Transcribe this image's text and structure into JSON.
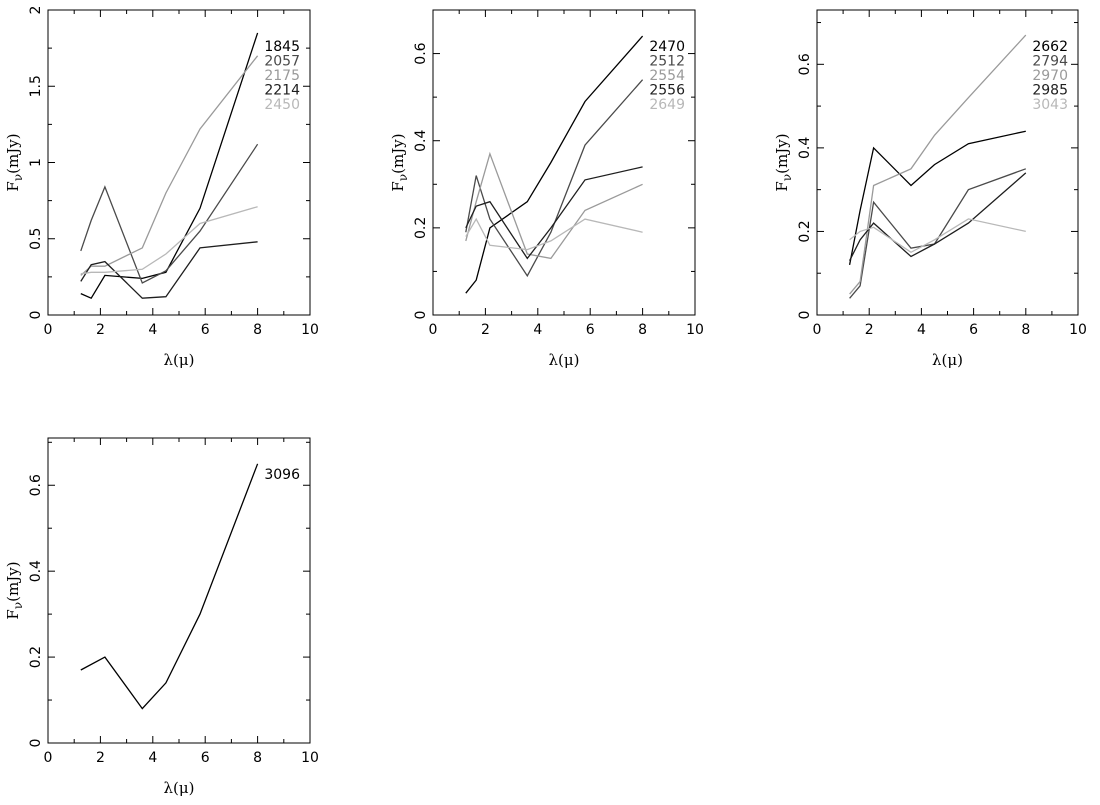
{
  "chart_data": [
    {
      "type": "line",
      "xlabel": "λ(μ)",
      "ylabel": "F_ν(mJy)",
      "xlim": [
        0,
        10
      ],
      "ylim": [
        0,
        2
      ],
      "xticks": [
        0,
        2,
        4,
        6,
        8,
        10
      ],
      "xtick_labels": [
        "0",
        "2",
        "4",
        "6",
        "8",
        "10"
      ],
      "yticks": [
        0,
        0.5,
        1,
        1.5,
        2
      ],
      "ytick_labels": [
        "0",
        "0.5",
        "1",
        "1.5",
        "2"
      ],
      "x": [
        1.25,
        1.65,
        2.17,
        3.6,
        4.5,
        5.8,
        8.0
      ],
      "series": [
        {
          "name": "1845",
          "color": "#000000",
          "values": [
            0.14,
            0.11,
            0.26,
            0.24,
            0.28,
            0.7,
            1.85
          ]
        },
        {
          "name": "2057",
          "color": "#4a4a4a",
          "values": [
            0.42,
            0.62,
            0.84,
            0.21,
            0.29,
            0.55,
            1.12
          ]
        },
        {
          "name": "2175",
          "color": "#9a9a9a",
          "values": [
            0.26,
            0.32,
            0.32,
            0.44,
            0.8,
            1.22,
            1.7
          ]
        },
        {
          "name": "2214",
          "color": "#1e1e1e",
          "values": [
            0.22,
            0.33,
            0.35,
            0.11,
            0.12,
            0.44,
            0.48
          ]
        },
        {
          "name": "2450",
          "color": "#b8b8b8",
          "values": [
            0.27,
            0.28,
            0.28,
            0.3,
            0.4,
            0.6,
            0.71
          ]
        }
      ]
    },
    {
      "type": "line",
      "xlabel": "λ(μ)",
      "ylabel": "F_ν(mJy)",
      "xlim": [
        0,
        10
      ],
      "ylim": [
        0,
        0.7
      ],
      "xticks": [
        0,
        2,
        4,
        6,
        8,
        10
      ],
      "xtick_labels": [
        "0",
        "2",
        "4",
        "6",
        "8",
        "10"
      ],
      "yticks": [
        0,
        0.2,
        0.4,
        0.6
      ],
      "ytick_labels": [
        "0",
        "0.2",
        "0.4",
        "0.6"
      ],
      "x": [
        1.25,
        1.65,
        2.17,
        3.6,
        4.5,
        5.8,
        8.0
      ],
      "series": [
        {
          "name": "2470",
          "color": "#000000",
          "values": [
            0.05,
            0.08,
            0.2,
            0.26,
            0.35,
            0.49,
            0.64
          ]
        },
        {
          "name": "2512",
          "color": "#4a4a4a",
          "values": [
            0.19,
            0.32,
            0.22,
            0.09,
            0.19,
            0.39,
            0.54
          ]
        },
        {
          "name": "2554",
          "color": "#9a9a9a",
          "values": [
            0.17,
            0.26,
            0.37,
            0.14,
            0.13,
            0.24,
            0.3
          ]
        },
        {
          "name": "2556",
          "color": "#1e1e1e",
          "values": [
            0.2,
            0.25,
            0.26,
            0.13,
            0.2,
            0.31,
            0.34
          ]
        },
        {
          "name": "2649",
          "color": "#b8b8b8",
          "values": [
            0.18,
            0.22,
            0.16,
            0.15,
            0.17,
            0.22,
            0.19
          ]
        }
      ]
    },
    {
      "type": "line",
      "xlabel": "λ(μ)",
      "ylabel": "F_ν(mJy)",
      "xlim": [
        0,
        10
      ],
      "ylim": [
        0,
        0.73
      ],
      "xticks": [
        0,
        2,
        4,
        6,
        8,
        10
      ],
      "xtick_labels": [
        "0",
        "2",
        "4",
        "6",
        "8",
        "10"
      ],
      "yticks": [
        0,
        0.2,
        0.4,
        0.6
      ],
      "ytick_labels": [
        "0",
        "0.2",
        "0.4",
        "0.6"
      ],
      "x": [
        1.25,
        1.65,
        2.17,
        3.6,
        4.5,
        5.8,
        8.0
      ],
      "series": [
        {
          "name": "2662",
          "color": "#000000",
          "values": [
            0.12,
            0.25,
            0.4,
            0.31,
            0.36,
            0.41,
            0.44
          ]
        },
        {
          "name": "2794",
          "color": "#4a4a4a",
          "values": [
            0.04,
            0.07,
            0.27,
            0.16,
            0.17,
            0.3,
            0.35
          ]
        },
        {
          "name": "2970",
          "color": "#9a9a9a",
          "values": [
            0.05,
            0.08,
            0.31,
            0.35,
            0.43,
            0.52,
            0.67
          ]
        },
        {
          "name": "2985",
          "color": "#1e1e1e",
          "values": [
            0.13,
            0.18,
            0.22,
            0.14,
            0.17,
            0.22,
            0.34
          ]
        },
        {
          "name": "3043",
          "color": "#b8b8b8",
          "values": [
            0.18,
            0.2,
            0.21,
            0.15,
            0.18,
            0.23,
            0.2
          ]
        }
      ]
    },
    {
      "type": "line",
      "xlabel": "λ(μ)",
      "ylabel": "F_ν(mJy)",
      "xlim": [
        0,
        10
      ],
      "ylim": [
        0,
        0.71
      ],
      "xticks": [
        0,
        2,
        4,
        6,
        8,
        10
      ],
      "xtick_labels": [
        "0",
        "2",
        "4",
        "6",
        "8",
        "10"
      ],
      "yticks": [
        0,
        0.2,
        0.4,
        0.6
      ],
      "ytick_labels": [
        "0",
        "0.2",
        "0.4",
        "0.6"
      ],
      "x": [
        1.25,
        2.17,
        3.6,
        4.5,
        5.8,
        8.0
      ],
      "series": [
        {
          "name": "3096",
          "color": "#000000",
          "values": [
            0.17,
            0.2,
            0.08,
            0.14,
            0.3,
            0.65
          ]
        }
      ]
    }
  ]
}
